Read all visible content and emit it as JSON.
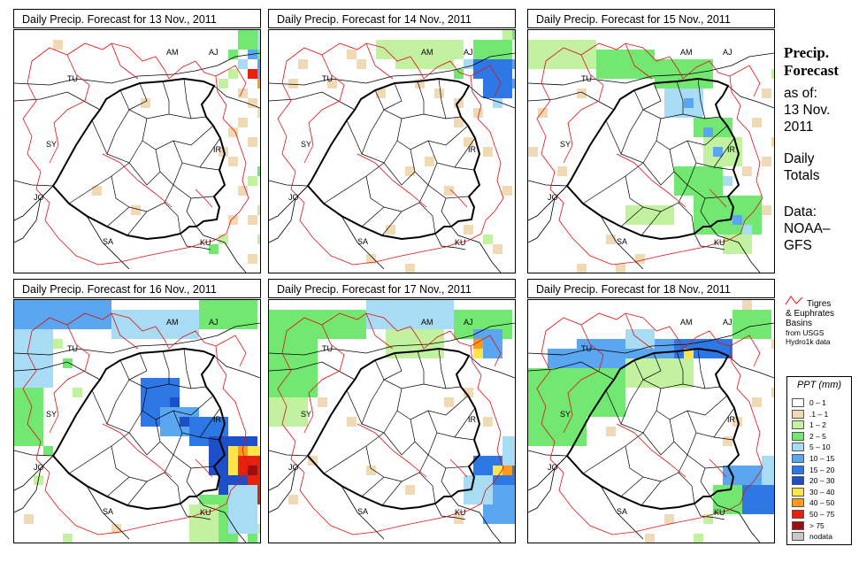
{
  "panels": [
    {
      "title": "Daily Precip. Forecast for  13 Nov., 2011"
    },
    {
      "title": "Daily Precip. Forecast for  14 Nov., 2011"
    },
    {
      "title": "Daily Precip. Forecast for  15 Nov., 2011"
    },
    {
      "title": "Daily Precip. Forecast for  16 Nov., 2011"
    },
    {
      "title": "Daily Precip. Forecast for  17 Nov., 2011"
    },
    {
      "title": "Daily Precip. Forecast for  18 Nov., 2011"
    }
  ],
  "map_labels": {
    "turkey": "TU",
    "armenia": "AM",
    "azerbaijan": "AJ",
    "syria": "SY",
    "iran": "IR",
    "jordan": "JO",
    "saudi_arabia": "SA",
    "kuwait": "KU"
  },
  "sidebar": {
    "title_line1": "Precip.",
    "title_line2": "Forecast",
    "as_of": "as of:",
    "date_line1": "13 Nov.",
    "date_line2": "2011",
    "totals_line1": "Daily",
    "totals_line2": "Totals",
    "data_line1": "Data:",
    "data_line2": "NOAA–",
    "data_line3": "GFS"
  },
  "basin_legend": {
    "line1": "Tigres",
    "line2": "& Euphrates",
    "line3": "Basins",
    "source1": "from USGS",
    "source2": "Hydro1k data",
    "line_color": "#e01010"
  },
  "legend": {
    "title": "PPT (mm)",
    "bins": [
      {
        "label": "0 – 1",
        "color": "#ffffff"
      },
      {
        "label": ".1 – 1",
        "color": "#f0d9b5"
      },
      {
        "label": "1 – 2",
        "color": "#c2f2a0"
      },
      {
        "label": "2 – 5",
        "color": "#72e872"
      },
      {
        "label": "5 – 10",
        "color": "#a8dcf4"
      },
      {
        "label": "10 – 15",
        "color": "#5aa6f0"
      },
      {
        "label": "15 – 20",
        "color": "#2e78e6"
      },
      {
        "label": "20 – 30",
        "color": "#1d4fc9"
      },
      {
        "label": "30 – 40",
        "color": "#ffe44a"
      },
      {
        "label": "40 – 50",
        "color": "#ff9a1a"
      },
      {
        "label": "50 – 75",
        "color": "#e8200e"
      },
      {
        "label": "> 75",
        "color": "#9a1010"
      },
      {
        "label": "nodata",
        "color": "#c8c8c8"
      }
    ]
  },
  "precip_patterns": {
    "nov13": "sparse-northeast",
    "nov14": "light-north",
    "nov15": "scattered-zagros",
    "nov16": "heavy-southeast",
    "nov17": "moderate-north-southeast",
    "nov18": "band-north"
  }
}
